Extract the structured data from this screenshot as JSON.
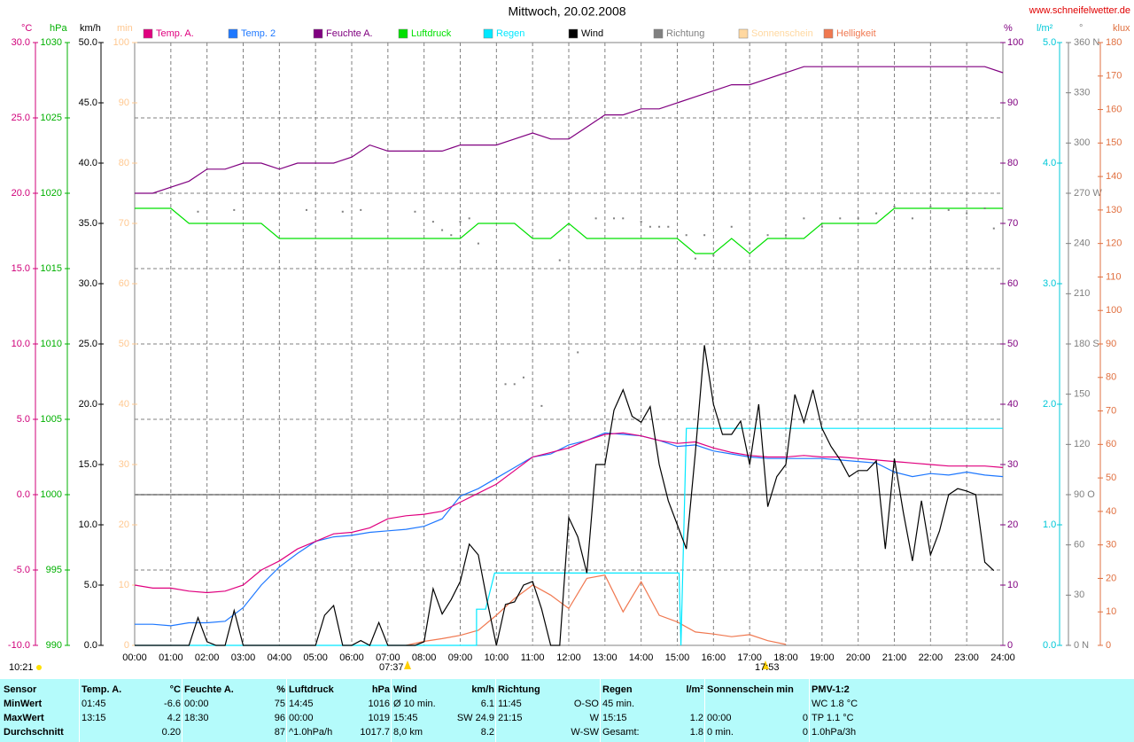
{
  "chart_data": {
    "type": "line",
    "title": "Mittwoch, 20.02.2008",
    "source": "www.schneifelwetter.de",
    "annotations": {
      "time": "10:21",
      "sunrise": "07:37",
      "sunset": "17:53"
    },
    "xlim": [
      0,
      24
    ],
    "xticks": [
      {
        "value": 0,
        "label": "00:00"
      },
      {
        "value": 1,
        "label": "01:00"
      },
      {
        "value": 2,
        "label": "02:00"
      },
      {
        "value": 3,
        "label": "03:00"
      },
      {
        "value": 4,
        "label": "04:00"
      },
      {
        "value": 5,
        "label": "05:00"
      },
      {
        "value": 6,
        "label": "06:00"
      },
      {
        "value": 7,
        "label": "07:00"
      },
      {
        "value": 8,
        "label": "08:00"
      },
      {
        "value": 9,
        "label": "09:00"
      },
      {
        "value": 10,
        "label": "10:00"
      },
      {
        "value": 11,
        "label": "11:00"
      },
      {
        "value": 12,
        "label": "12:00"
      },
      {
        "value": 13,
        "label": "13:00"
      },
      {
        "value": 14,
        "label": "14:00"
      },
      {
        "value": 15,
        "label": "15:00"
      },
      {
        "value": 16,
        "label": "16:00"
      },
      {
        "value": 17,
        "label": "17:00"
      },
      {
        "value": 18,
        "label": "18:00"
      },
      {
        "value": 19,
        "label": "19:00"
      },
      {
        "value": 20,
        "label": "20:00"
      },
      {
        "value": 21,
        "label": "21:00"
      },
      {
        "value": 22,
        "label": "22:00"
      },
      {
        "value": 23,
        "label": "23:00"
      },
      {
        "value": 24,
        "label": "24:00"
      }
    ],
    "axes": [
      {
        "unit": "°C",
        "color": "#d0007a",
        "zero_line": true,
        "lim": [
          -10,
          30
        ],
        "ticks": [
          {
            "value": -10,
            "label": "-10.0"
          },
          {
            "value": -5,
            "label": "-5.0"
          },
          {
            "value": 0,
            "label": "0.0"
          },
          {
            "value": 5,
            "label": "5.0"
          },
          {
            "value": 10,
            "label": "10.0"
          },
          {
            "value": 15,
            "label": "15.0"
          },
          {
            "value": 20,
            "label": "20.0"
          },
          {
            "value": 25,
            "label": "25.0"
          },
          {
            "value": 30,
            "label": "30.0"
          }
        ]
      },
      {
        "unit": "hPa",
        "color": "#00b000",
        "grid": true,
        "lim": [
          990,
          1030
        ],
        "ticks": [
          990,
          995,
          1000,
          1005,
          1010,
          1015,
          1020,
          1025,
          1030
        ]
      },
      {
        "unit": "km/h",
        "color": "#000000",
        "lim": [
          0,
          50
        ],
        "ticks": [
          {
            "value": 0,
            "label": "0.0"
          },
          {
            "value": 5,
            "label": "5.0"
          },
          {
            "value": 10,
            "label": "10.0"
          },
          {
            "value": 15,
            "label": "15.0"
          },
          {
            "value": 20,
            "label": "20.0"
          },
          {
            "value": 25,
            "label": "25.0"
          },
          {
            "value": 30,
            "label": "30.0"
          },
          {
            "value": 35,
            "label": "35.0"
          },
          {
            "value": 40,
            "label": "40.0"
          },
          {
            "value": 45,
            "label": "45.0"
          },
          {
            "value": 50,
            "label": "50.0"
          }
        ]
      },
      {
        "unit": "min",
        "color": "#ffc890",
        "lim": [
          0,
          100
        ],
        "ticks": [
          0,
          10,
          20,
          30,
          40,
          50,
          60,
          70,
          80,
          90,
          100
        ]
      },
      {
        "unit": "%",
        "color": "#800080",
        "lim": [
          0,
          100
        ],
        "ticks": [
          0,
          10,
          20,
          30,
          40,
          50,
          60,
          70,
          80,
          90,
          100
        ]
      },
      {
        "unit": "l/m²",
        "color": "#00c8d8",
        "lim": [
          0,
          5
        ],
        "ticks": [
          {
            "value": 0,
            "label": "0.0"
          },
          {
            "value": 1,
            "label": "1.0"
          },
          {
            "value": 2,
            "label": "2.0"
          },
          {
            "value": 3,
            "label": "3.0"
          },
          {
            "value": 4,
            "label": "4.0"
          },
          {
            "value": 5,
            "label": "5.0"
          }
        ]
      },
      {
        "unit": "°",
        "color": "#808080",
        "lim": [
          0,
          360
        ],
        "ticks": [
          {
            "value": 0,
            "label": "0 N"
          },
          30,
          60,
          {
            "value": 90,
            "label": "90 O"
          },
          120,
          150,
          {
            "value": 180,
            "label": "180 S"
          },
          210,
          240,
          {
            "value": 270,
            "label": "270 W"
          },
          300,
          330,
          {
            "value": 360,
            "label": "360 N"
          }
        ]
      },
      {
        "unit": "klux",
        "color": "#e07040",
        "lim": [
          0,
          180
        ],
        "ticks": [
          0,
          10,
          20,
          30,
          40,
          50,
          60,
          70,
          80,
          90,
          100,
          110,
          120,
          130,
          140,
          150,
          160,
          170,
          180
        ]
      }
    ],
    "x": [
      0,
      0.5,
      1,
      1.5,
      2,
      2.5,
      3,
      3.5,
      4,
      4.5,
      5,
      5.5,
      6,
      6.5,
      7,
      7.5,
      8,
      8.5,
      9,
      9.5,
      10,
      10.5,
      11,
      11.5,
      12,
      12.5,
      13,
      13.5,
      14,
      14.5,
      15,
      15.5,
      16,
      16.5,
      17,
      17.5,
      18,
      18.5,
      19,
      19.5,
      20,
      20.5,
      21,
      21.5,
      22,
      22.5,
      23,
      23.5,
      24
    ],
    "series": [
      {
        "name": "Temp. A.",
        "color": "#e0007f",
        "axis": 0,
        "style": "line",
        "values": [
          -6.0,
          -6.2,
          -6.2,
          -6.4,
          -6.5,
          -6.4,
          -6.0,
          -5.0,
          -4.4,
          -3.6,
          -3.1,
          -2.6,
          -2.5,
          -2.2,
          -1.6,
          -1.4,
          -1.3,
          -1.1,
          -0.5,
          0.1,
          0.7,
          1.6,
          2.5,
          2.8,
          3.1,
          3.6,
          4.0,
          4.1,
          3.9,
          3.6,
          3.4,
          3.5,
          3.1,
          2.8,
          2.6,
          2.5,
          2.5,
          2.6,
          2.5,
          2.5,
          2.4,
          2.3,
          2.2,
          2.1,
          2.0,
          1.9,
          1.9,
          1.9,
          1.8
        ]
      },
      {
        "name": "Temp. 2",
        "color": "#1e78ff",
        "axis": 0,
        "style": "line",
        "values": [
          -8.6,
          -8.6,
          -8.7,
          -8.5,
          -8.5,
          -8.4,
          -7.5,
          -6.0,
          -4.8,
          -3.9,
          -3.1,
          -2.8,
          -2.7,
          -2.5,
          -2.4,
          -2.3,
          -2.1,
          -1.6,
          -0.1,
          0.4,
          1.1,
          1.8,
          2.5,
          2.7,
          3.3,
          3.6,
          4.1,
          4.0,
          3.9,
          3.6,
          3.2,
          3.3,
          2.9,
          2.7,
          2.5,
          2.4,
          2.4,
          2.4,
          2.4,
          2.3,
          2.2,
          2.1,
          1.5,
          1.2,
          1.4,
          1.3,
          1.5,
          1.3,
          1.2
        ]
      },
      {
        "name": "Feuchte A.",
        "color": "#800080",
        "axis": 4,
        "style": "line",
        "values": [
          75,
          75,
          76,
          77,
          79,
          79,
          80,
          80,
          79,
          80,
          80,
          80,
          81,
          83,
          82,
          82,
          82,
          82,
          83,
          83,
          83,
          84,
          85,
          84,
          84,
          86,
          88,
          88,
          89,
          89,
          90,
          91,
          92,
          93,
          93,
          94,
          95,
          96,
          96,
          96,
          96,
          96,
          96,
          96,
          96,
          96,
          96,
          96,
          95
        ]
      },
      {
        "name": "Luftdruck",
        "color": "#00e000",
        "axis": 1,
        "style": "line",
        "values": [
          1019,
          1019,
          1019,
          1018,
          1018,
          1018,
          1018,
          1018,
          1017,
          1017,
          1017,
          1017,
          1017,
          1017,
          1017,
          1017,
          1017,
          1017,
          1017,
          1018,
          1018,
          1018,
          1017,
          1017,
          1018,
          1017,
          1017,
          1017,
          1017,
          1017,
          1017,
          1016,
          1016,
          1017,
          1016,
          1017,
          1017,
          1017,
          1018,
          1018,
          1018,
          1018,
          1019,
          1019,
          1019,
          1019,
          1019,
          1019,
          1019
        ]
      },
      {
        "name": "Regen",
        "color": "#00e8ff",
        "axis": 5,
        "style": "line",
        "x": [
          0,
          9.45,
          9.45,
          9.7,
          9.95,
          15.05,
          15.1,
          15.2,
          15.25,
          24
        ],
        "values": [
          0,
          0,
          0.3,
          0.3,
          0.6,
          0.6,
          0,
          1.2,
          1.8,
          1.8
        ]
      },
      {
        "name": "Wind",
        "color": "#000000",
        "axis": 2,
        "style": "line",
        "x": [
          0,
          0.25,
          0.5,
          0.75,
          1,
          1.25,
          1.5,
          1.75,
          2,
          2.25,
          2.5,
          2.75,
          3,
          3.25,
          3.5,
          3.75,
          4,
          4.25,
          4.5,
          4.75,
          5,
          5.25,
          5.5,
          5.75,
          6,
          6.25,
          6.5,
          6.75,
          7,
          7.25,
          7.5,
          7.75,
          8,
          8.25,
          8.5,
          8.75,
          9,
          9.25,
          9.5,
          9.75,
          10,
          10.25,
          10.5,
          10.75,
          11,
          11.25,
          11.5,
          11.75,
          12,
          12.25,
          12.5,
          12.75,
          13,
          13.25,
          13.5,
          13.75,
          14,
          14.25,
          14.5,
          14.75,
          15,
          15.25,
          15.5,
          15.75,
          16,
          16.25,
          16.5,
          16.75,
          17,
          17.25,
          17.5,
          17.75,
          18,
          18.25,
          18.5,
          18.75,
          19,
          19.25,
          19.5,
          19.75,
          20,
          20.25,
          20.5,
          20.75,
          21,
          21.25,
          21.5,
          21.75,
          22,
          22.25,
          22.5,
          22.75,
          23,
          23.25,
          23.5,
          23.75
        ],
        "values": [
          0,
          0,
          0,
          0,
          0,
          0,
          0,
          2.3,
          0.3,
          0,
          0,
          2.9,
          0,
          0,
          0,
          0,
          0,
          0,
          0,
          0,
          0,
          2.5,
          3.3,
          0,
          0,
          0.4,
          0,
          1.9,
          0,
          0,
          0,
          0,
          0.3,
          4.7,
          2.6,
          3.8,
          5.3,
          8.4,
          7.5,
          3.6,
          0,
          3.4,
          3.6,
          5.0,
          5.3,
          3.0,
          0,
          0,
          10.6,
          9.0,
          6.0,
          15.0,
          15.0,
          19.5,
          21.2,
          19.0,
          18.5,
          19.8,
          15.0,
          12.0,
          10.0,
          8.0,
          16.0,
          24.9,
          20.0,
          17.5,
          17.5,
          18.6,
          15.0,
          20.0,
          11.5,
          14.0,
          15.0,
          20.8,
          18.5,
          21.2,
          18.0,
          16.5,
          15.4,
          14.0,
          14.5,
          14.5,
          15.3,
          8.0,
          15.5,
          11.0,
          7.0,
          12.0,
          7.5,
          9.5,
          12.5,
          13.0,
          12.8,
          12.5,
          6.9,
          6.2
        ]
      },
      {
        "name": "Richtung",
        "color": "#808080",
        "axis": 6,
        "style": "dots",
        "x": [
          1.75,
          2.75,
          4.75,
          5.75,
          6.25,
          7.75,
          8.25,
          8.5,
          8.75,
          9,
          9.25,
          9.5,
          10.25,
          10.5,
          10.75,
          11.25,
          11.75,
          12.25,
          12.75,
          13.25,
          13.5,
          14,
          14.25,
          14.5,
          14.75,
          15.25,
          15.5,
          15.75,
          16,
          16.5,
          17,
          17.5,
          18,
          18.5,
          19,
          19.5,
          20,
          20.5,
          21,
          21.5,
          22,
          22.5,
          23,
          23.5,
          23.75
        ],
        "values": [
          259,
          260,
          260,
          259,
          260,
          259,
          253,
          248,
          245,
          253,
          255,
          240,
          156,
          156,
          160,
          143,
          230,
          175,
          255,
          255,
          255,
          253,
          250,
          250,
          250,
          245,
          231,
          245,
          233,
          250,
          240,
          245,
          245,
          255,
          250,
          255,
          255,
          258,
          262,
          255,
          262,
          260,
          258,
          261,
          249
        ]
      },
      {
        "name": "Sonnenschein",
        "color": "#ffd8a0",
        "axis": 3,
        "style": "line"
      },
      {
        "name": "Helligkeit",
        "color": "#f07850",
        "axis": 7,
        "style": "line",
        "values": [
          null,
          null,
          null,
          null,
          null,
          null,
          null,
          null,
          null,
          null,
          null,
          null,
          null,
          null,
          null,
          0,
          1.2,
          2,
          3,
          4.5,
          9,
          14,
          18,
          15,
          11,
          20,
          21,
          10,
          19,
          9,
          7,
          4,
          3.4,
          2.6,
          3.2,
          1.4,
          0.3,
          null,
          null,
          null,
          null,
          null,
          null,
          null,
          null,
          null,
          null,
          null,
          null
        ]
      }
    ]
  },
  "table": {
    "columns": [
      {
        "label": "Sensor"
      },
      {
        "label": "Temp. A.",
        "unit": "°C"
      },
      {
        "label": "Feuchte A.",
        "unit": "%"
      },
      {
        "label": "Luftdruck",
        "unit": "hPa"
      },
      {
        "label": "Wind",
        "unit": "km/h"
      },
      {
        "label": "Richtung"
      },
      {
        "label": "Regen",
        "unit": "l/m²"
      },
      {
        "label": "Sonnenschein min"
      },
      {
        "label": "PMV-1:2"
      }
    ],
    "rows": [
      {
        "label": "MinWert",
        "cells": [
          {
            "left": "01:45",
            "right": "-6.6"
          },
          {
            "left": "00:00",
            "right": "75"
          },
          {
            "left": "14:45",
            "right": "1016"
          },
          {
            "left": "Ø 10 min.",
            "right": "6.1"
          },
          {
            "left": "11:45",
            "right": "O-SO"
          },
          {
            "left": "45 min."
          },
          {},
          {
            "left": "WC 1.8 °C"
          }
        ]
      },
      {
        "label": "MaxWert",
        "cells": [
          {
            "left": "13:15",
            "right": "4.2"
          },
          {
            "left": "18:30",
            "right": "96"
          },
          {
            "left": "00:00",
            "right": "1019"
          },
          {
            "left": "15:45",
            "right": "SW 24.9"
          },
          {
            "left": "21:15",
            "right": "W"
          },
          {
            "left": "15:15",
            "right": "1.2"
          },
          {
            "left": "00:00",
            "right": "0"
          },
          {
            "left": "TP 1.1 °C"
          }
        ]
      },
      {
        "label": "Durchschnitt",
        "cells": [
          {
            "right": "0.20"
          },
          {
            "right": "87"
          },
          {
            "left": "^1.0hPa/h",
            "right": "1017.7"
          },
          {
            "left": "8,0 km",
            "right": "8.2"
          },
          {
            "right": "W-SW"
          },
          {
            "left": "Gesamt:",
            "right": "1.8"
          },
          {
            "left": "0 min.",
            "right": "0"
          },
          {
            "left": "1.0hPa/3h"
          }
        ]
      }
    ]
  }
}
